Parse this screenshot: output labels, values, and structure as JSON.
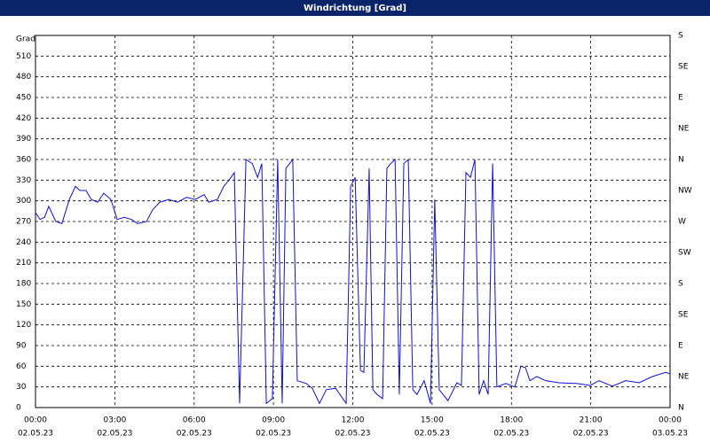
{
  "chart_data": {
    "type": "line",
    "title": "Windrichtung [Grad]",
    "y_label": "Grad",
    "x": [
      0,
      0.17,
      0.34,
      0.5,
      0.77,
      1.0,
      1.28,
      1.51,
      1.68,
      1.91,
      2.11,
      2.35,
      2.58,
      2.85,
      3.09,
      3.36,
      3.63,
      3.86,
      4.2,
      4.43,
      4.7,
      5.04,
      5.37,
      5.71,
      6.04,
      6.38,
      6.55,
      6.88,
      7.12,
      7.32,
      7.52,
      7.72,
      7.96,
      8.2,
      8.4,
      8.56,
      8.73,
      8.96,
      9.16,
      9.33,
      9.47,
      9.73,
      9.9,
      10.24,
      10.47,
      10.74,
      11.0,
      11.35,
      11.75,
      11.92,
      12.09,
      12.29,
      12.42,
      12.62,
      12.76,
      12.92,
      13.13,
      13.29,
      13.43,
      13.6,
      13.76,
      13.93,
      14.1,
      14.27,
      14.43,
      14.7,
      14.94,
      15.1,
      15.27,
      15.6,
      15.94,
      16.11,
      16.28,
      16.45,
      16.62,
      16.78,
      16.95,
      17.12,
      17.29,
      17.45,
      17.79,
      18.13,
      18.36,
      18.53,
      18.7,
      18.96,
      19.3,
      19.8,
      20.47,
      20.98,
      21.31,
      21.82,
      22.32,
      22.83,
      23.33,
      23.83,
      24.0
    ],
    "series": [
      {
        "color": "#1010d0",
        "values": [
          283,
          273,
          276,
          292,
          270,
          267,
          302,
          321,
          315,
          315,
          302,
          298,
          311,
          302,
          273,
          276,
          273,
          267,
          270,
          287,
          298,
          302,
          298,
          305,
          302,
          309,
          298,
          302,
          321,
          330,
          341,
          6,
          360,
          354,
          334,
          354,
          6,
          13,
          360,
          6,
          347,
          360,
          39,
          35,
          28,
          6,
          26,
          28,
          6,
          321,
          334,
          54,
          51,
          347,
          26,
          19,
          13,
          347,
          354,
          360,
          19,
          354,
          360,
          26,
          19,
          39,
          6,
          302,
          26,
          10,
          36,
          32,
          341,
          334,
          360,
          19,
          39,
          19,
          354,
          30,
          35,
          30,
          60,
          58,
          39,
          45,
          39,
          36,
          35,
          32,
          39,
          31,
          39,
          36,
          45,
          51,
          49
        ]
      }
    ],
    "xlim": [
      0,
      24
    ],
    "xticks": [
      {
        "value": 0,
        "label": "00:00",
        "date": "02.05.23"
      },
      {
        "value": 3,
        "label": "03:00",
        "date": "02.05.23"
      },
      {
        "value": 6,
        "label": "06:00",
        "date": "02.05.23"
      },
      {
        "value": 9,
        "label": "09:00",
        "date": "02.05.23"
      },
      {
        "value": 12,
        "label": "12:00",
        "date": "02.05.23"
      },
      {
        "value": 15,
        "label": "15:00",
        "date": "02.05.23"
      },
      {
        "value": 18,
        "label": "18:00",
        "date": "02.05.23"
      },
      {
        "value": 21,
        "label": "21:00",
        "date": "02.05.23"
      },
      {
        "value": 24,
        "label": "00:00",
        "date": "03.05.23"
      }
    ],
    "ylim": [
      0,
      540
    ],
    "yticks": [
      0,
      30,
      60,
      90,
      120,
      150,
      180,
      210,
      240,
      270,
      300,
      330,
      360,
      390,
      420,
      450,
      480,
      510
    ],
    "y2lim": [
      0,
      540
    ],
    "y2ticks": [
      {
        "value": 0,
        "label": "N"
      },
      {
        "value": 45,
        "label": "NE"
      },
      {
        "value": 90,
        "label": "E"
      },
      {
        "value": 135,
        "label": "SE"
      },
      {
        "value": 180,
        "label": "S"
      },
      {
        "value": 225,
        "label": "SW"
      },
      {
        "value": 270,
        "label": "W"
      },
      {
        "value": 315,
        "label": "NW"
      },
      {
        "value": 360,
        "label": "N"
      },
      {
        "value": 405,
        "label": "NE"
      },
      {
        "value": 450,
        "label": "E"
      },
      {
        "value": 495,
        "label": "SE"
      },
      {
        "value": 540,
        "label": "S"
      }
    ],
    "grid": true
  }
}
